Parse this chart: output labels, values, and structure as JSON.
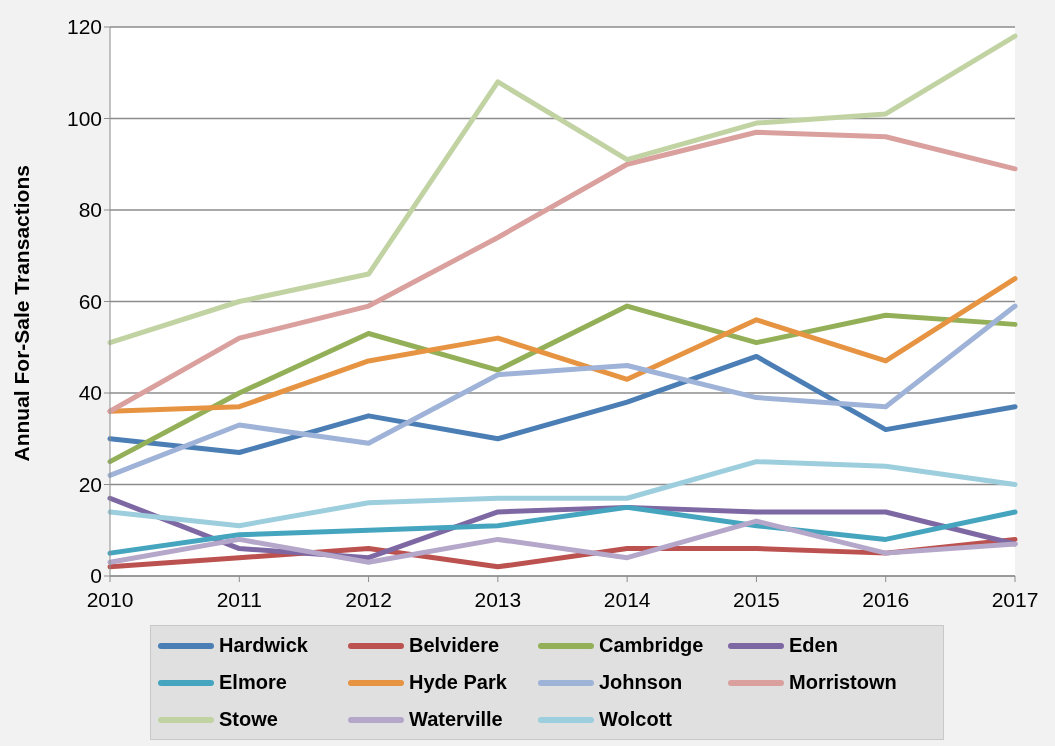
{
  "chart_data": {
    "type": "line",
    "ylabel": "Annual For-Sale Transactions",
    "categories": [
      "2010",
      "2011",
      "2012",
      "2013",
      "2014",
      "2015",
      "2016",
      "2017"
    ],
    "ylim": [
      0,
      120
    ],
    "yticks": [
      0,
      20,
      40,
      60,
      80,
      100,
      120
    ],
    "grid": "y",
    "legend": "bottom",
    "marker": "none",
    "line_style": "solid",
    "series": [
      {
        "name": "Hardwick",
        "color": "#4a7eb5",
        "values": [
          30,
          27,
          35,
          30,
          38,
          48,
          32,
          37
        ]
      },
      {
        "name": "Belvidere",
        "color": "#bc524f",
        "values": [
          2,
          4,
          6,
          2,
          6,
          6,
          5,
          8
        ]
      },
      {
        "name": "Cambridge",
        "color": "#93b058",
        "values": [
          25,
          40,
          53,
          45,
          59,
          51,
          57,
          55
        ]
      },
      {
        "name": "Eden",
        "color": "#7e68a3",
        "values": [
          17,
          6,
          4,
          14,
          15,
          14,
          14,
          7
        ]
      },
      {
        "name": "Elmore",
        "color": "#45a5be",
        "values": [
          5,
          9,
          10,
          11,
          15,
          11,
          8,
          14
        ]
      },
      {
        "name": "Hyde Park",
        "color": "#e69442",
        "values": [
          36,
          37,
          47,
          52,
          43,
          56,
          47,
          65
        ]
      },
      {
        "name": "Johnson",
        "color": "#9fb3d8",
        "values": [
          22,
          33,
          29,
          44,
          46,
          39,
          37,
          59
        ]
      },
      {
        "name": "Morristown",
        "color": "#daa09e",
        "values": [
          36,
          52,
          59,
          74,
          90,
          97,
          96,
          89
        ]
      },
      {
        "name": "Stowe",
        "color": "#c2d3a3",
        "values": [
          51,
          60,
          66,
          108,
          91,
          99,
          101,
          118
        ]
      },
      {
        "name": "Waterville",
        "color": "#b4a7c9",
        "values": [
          3,
          8,
          3,
          8,
          4,
          12,
          5,
          7
        ]
      },
      {
        "name": "Wolcott",
        "color": "#9dcedd",
        "values": [
          14,
          11,
          16,
          17,
          17,
          25,
          24,
          20
        ]
      }
    ]
  }
}
